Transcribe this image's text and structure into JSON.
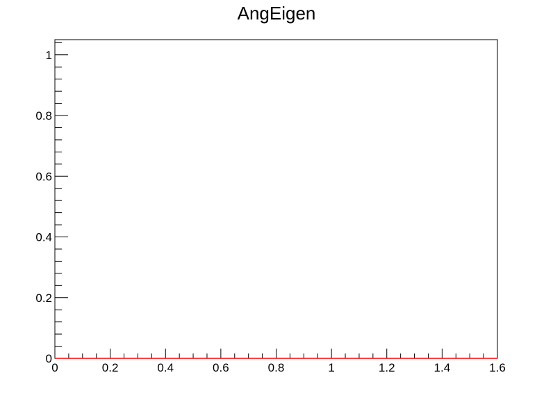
{
  "chart_data": {
    "type": "line",
    "title": "AngEigen",
    "xlabel": "",
    "ylabel": "",
    "xlim": [
      0,
      1.6
    ],
    "ylim": [
      0,
      1.05
    ],
    "x_ticks": [
      "0",
      "0.2",
      "0.4",
      "0.6",
      "0.8",
      "1",
      "1.2",
      "1.4",
      "1.6"
    ],
    "y_ticks": [
      "0",
      "0.2",
      "0.4",
      "0.6",
      "0.8",
      "1"
    ],
    "grid": false,
    "series": [
      {
        "x": [
          0,
          1.6
        ],
        "y": [
          0,
          0
        ],
        "color": "#ff0000"
      }
    ]
  },
  "colors": {
    "axis": "#000000",
    "series_line": "#ff0000",
    "background": "#ffffff"
  }
}
